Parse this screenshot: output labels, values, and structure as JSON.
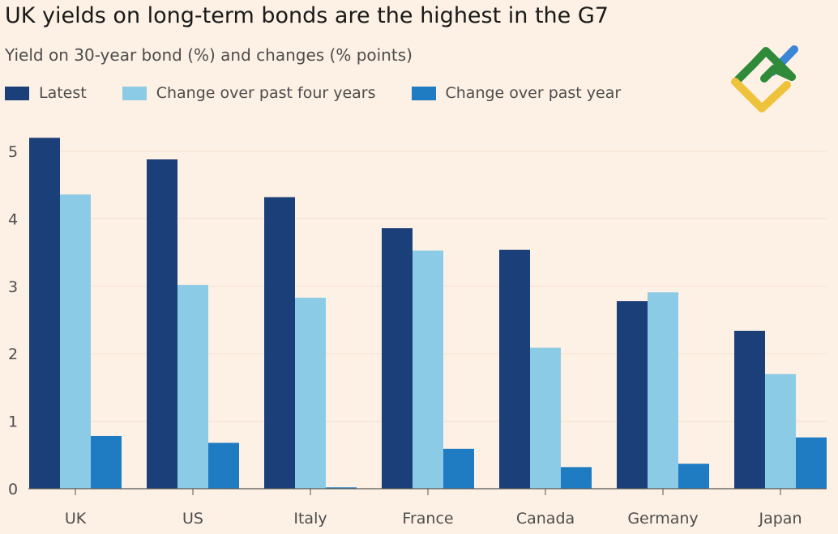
{
  "chart_data": {
    "type": "bar",
    "title": "UK yields on long-term bonds are the highest in the G7",
    "subtitle": "Yield on 30-year bond (%) and changes (% points)",
    "categories": [
      "UK",
      "US",
      "Italy",
      "France",
      "Canada",
      "Germany",
      "Japan"
    ],
    "series": [
      {
        "name": "Latest",
        "color": "#1b3f78",
        "values": [
          5.2,
          4.88,
          4.32,
          3.86,
          3.54,
          2.78,
          2.34
        ]
      },
      {
        "name": "Change over past four years",
        "color": "#8ccbe6",
        "values": [
          4.36,
          3.02,
          2.83,
          3.53,
          2.09,
          2.91,
          1.7
        ]
      },
      {
        "name": "Change over past year",
        "color": "#1f7cc2",
        "values": [
          0.78,
          0.68,
          0.02,
          0.59,
          0.32,
          0.37,
          0.76
        ]
      }
    ],
    "yticks": [
      0,
      1,
      2,
      3,
      4,
      5
    ],
    "ylim": [
      0,
      5.3
    ],
    "grid": true,
    "legend": "top-left"
  }
}
